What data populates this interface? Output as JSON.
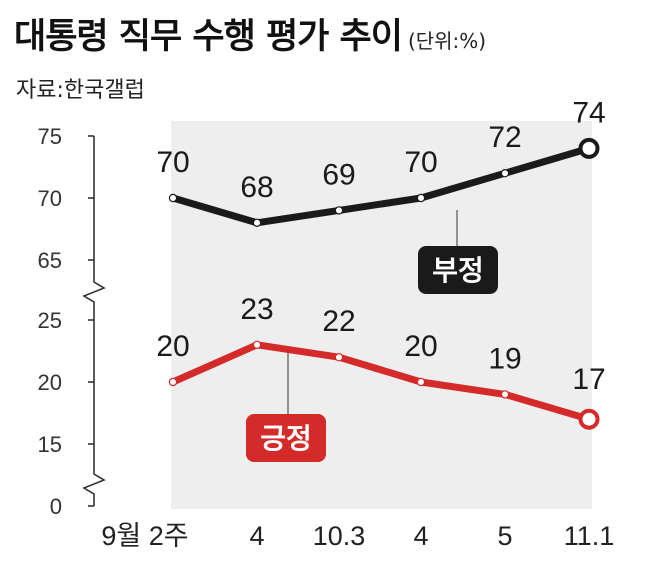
{
  "header": {
    "title": "대통령 직무 수행 평가 추이",
    "unit": "(단위:%)",
    "source": "자료:한국갤럽"
  },
  "chart_data": {
    "type": "line",
    "title": "대통령 직무 수행 평가 추이",
    "unit": "%",
    "categories": [
      "9월 2주",
      "4",
      "10.3",
      "4",
      "5",
      "11.1"
    ],
    "y_ticks_upper": [
      "75",
      "70",
      "65"
    ],
    "y_ticks_lower": [
      "25",
      "20",
      "15",
      "0"
    ],
    "axis_break": true,
    "series": [
      {
        "name": "부정",
        "values": [
          70,
          68,
          69,
          70,
          72,
          74
        ],
        "color": "#1a1a1a"
      },
      {
        "name": "긍정",
        "values": [
          20,
          23,
          22,
          20,
          19,
          17
        ],
        "color": "#d42a2a"
      }
    ],
    "colors": {
      "negative": "#1a1a1a",
      "positive": "#d42a2a",
      "plot_bg": "#eeeeee"
    }
  }
}
